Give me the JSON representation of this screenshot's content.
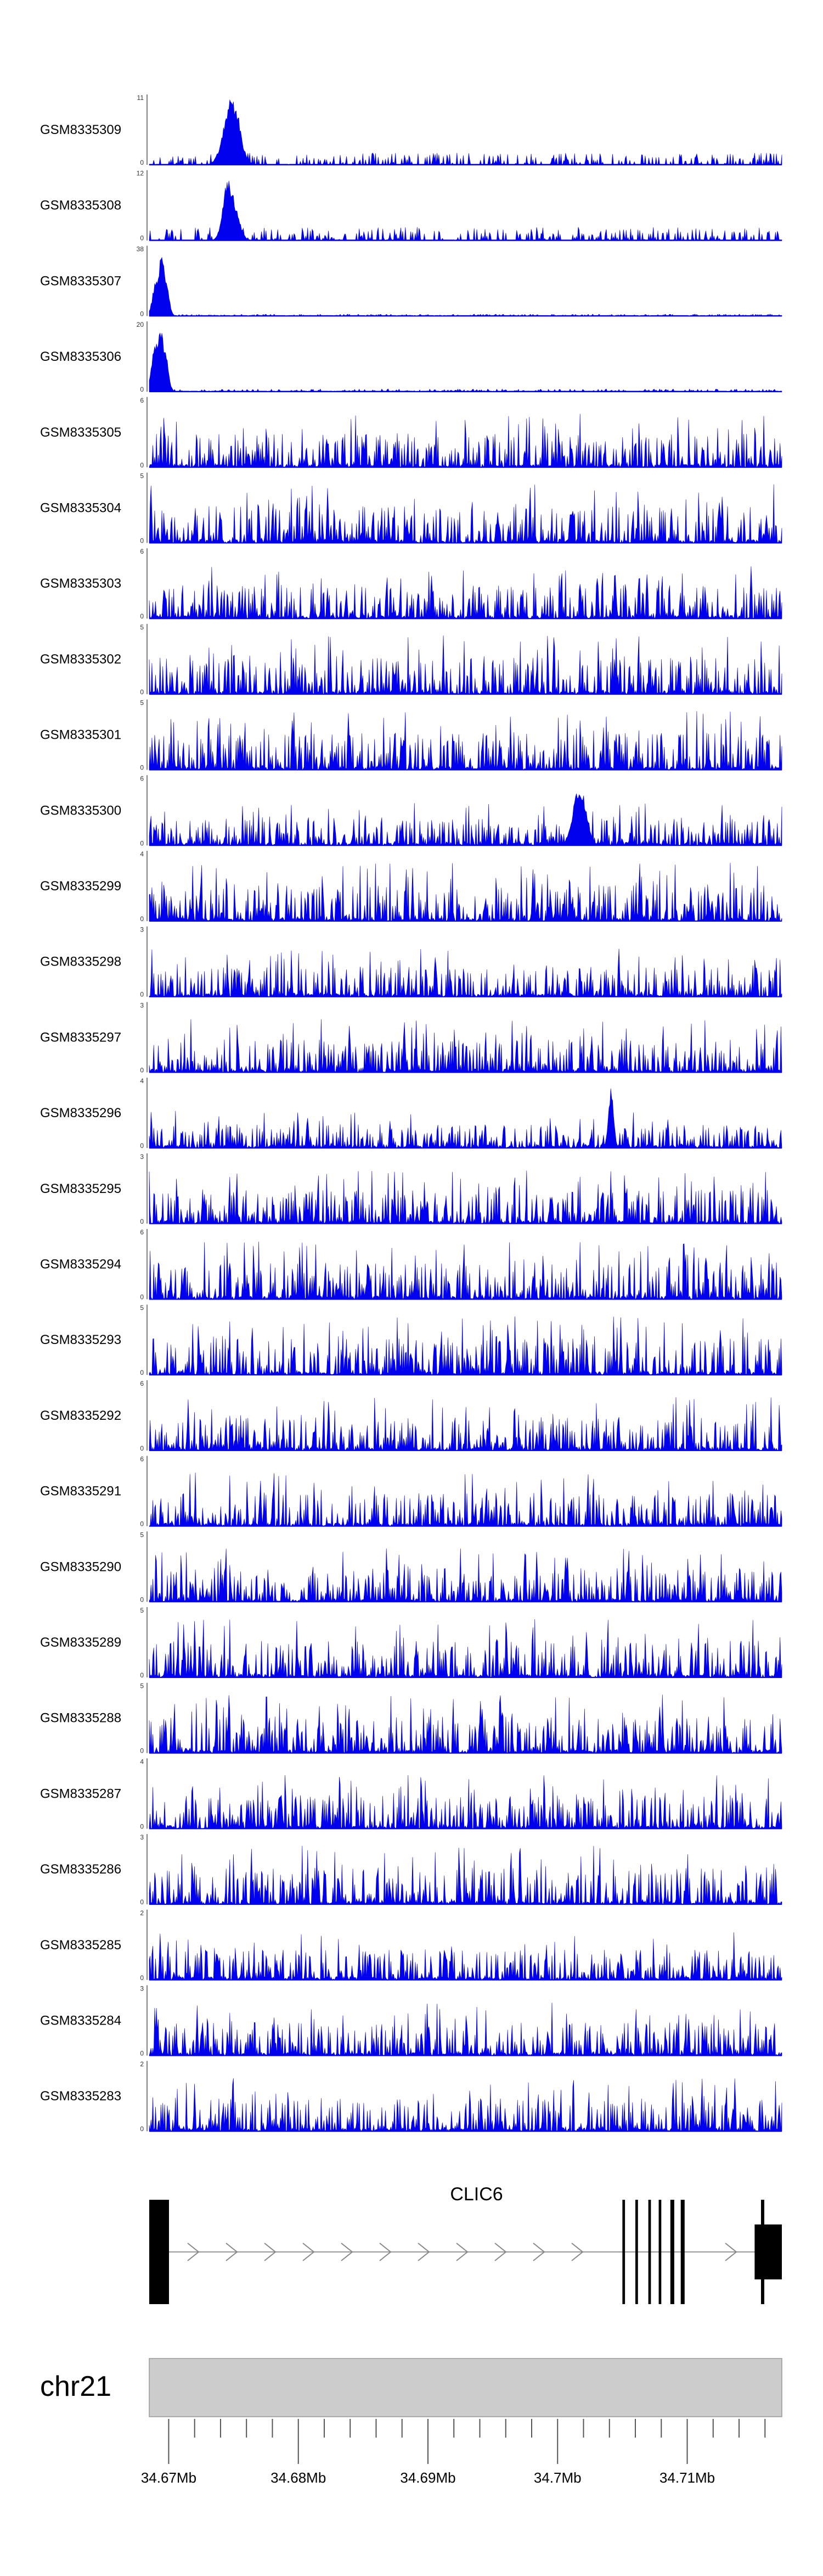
{
  "chart_data": {
    "type": "area",
    "colors": {
      "signal": "#0000ee",
      "axis": "#555555",
      "chrom_bar": "#cccccc",
      "gene": "#000000"
    },
    "region": {
      "chromosome": "chr21",
      "start": 34.6685,
      "end": 34.7173,
      "unit": "Mb"
    },
    "tracks": [
      {
        "name": "GSM8335309",
        "ymax": 11,
        "profile": "peak",
        "peaks": [
          [
            0.13,
            1.0,
            0.012
          ],
          [
            0.125,
            0.7,
            0.006
          ],
          [
            0.14,
            0.75,
            0.006
          ]
        ],
        "bg": 0.18
      },
      {
        "name": "GSM8335308",
        "ymax": 12,
        "profile": "peak",
        "peaks": [
          [
            0.125,
            0.95,
            0.008
          ],
          [
            0.13,
            0.7,
            0.01
          ],
          [
            0.12,
            0.55,
            0.006
          ]
        ],
        "bg": 0.2
      },
      {
        "name": "GSM8335307",
        "ymax": 38,
        "profile": "peak",
        "peaks": [
          [
            0.02,
            1.0,
            0.006
          ],
          [
            0.012,
            0.6,
            0.006
          ],
          [
            0.026,
            0.55,
            0.005
          ]
        ],
        "bg": 0.03
      },
      {
        "name": "GSM8335306",
        "ymax": 20,
        "profile": "peak",
        "peaks": [
          [
            0.018,
            0.95,
            0.006
          ],
          [
            0.01,
            0.75,
            0.006
          ],
          [
            0.025,
            0.6,
            0.005
          ]
        ],
        "bg": 0.04
      },
      {
        "name": "GSM8335305",
        "ymax": 6,
        "profile": "noise",
        "bg": 0.5
      },
      {
        "name": "GSM8335304",
        "ymax": 5,
        "profile": "noise",
        "bg": 0.55
      },
      {
        "name": "GSM8335303",
        "ymax": 6,
        "profile": "noise",
        "bg": 0.5
      },
      {
        "name": "GSM8335302",
        "ymax": 5,
        "profile": "noise",
        "bg": 0.55
      },
      {
        "name": "GSM8335301",
        "ymax": 5,
        "profile": "noise",
        "bg": 0.55
      },
      {
        "name": "GSM8335300",
        "ymax": 6,
        "profile": "noise",
        "bg": 0.4,
        "peaks": [
          [
            0.68,
            0.95,
            0.01
          ]
        ]
      },
      {
        "name": "GSM8335299",
        "ymax": 4,
        "profile": "noise",
        "bg": 0.55
      },
      {
        "name": "GSM8335298",
        "ymax": 3,
        "profile": "noise",
        "bg": 0.45
      },
      {
        "name": "GSM8335297",
        "ymax": 3,
        "profile": "noise",
        "bg": 0.5
      },
      {
        "name": "GSM8335296",
        "ymax": 4,
        "profile": "noise",
        "bg": 0.35,
        "peaks": [
          [
            0.73,
            0.95,
            0.004
          ]
        ]
      },
      {
        "name": "GSM8335295",
        "ymax": 3,
        "profile": "noise",
        "bg": 0.5
      },
      {
        "name": "GSM8335294",
        "ymax": 6,
        "profile": "noise",
        "bg": 0.55
      },
      {
        "name": "GSM8335293",
        "ymax": 5,
        "profile": "noise",
        "bg": 0.55
      },
      {
        "name": "GSM8335292",
        "ymax": 6,
        "profile": "noise",
        "bg": 0.5
      },
      {
        "name": "GSM8335291",
        "ymax": 6,
        "profile": "noise",
        "bg": 0.5
      },
      {
        "name": "GSM8335290",
        "ymax": 5,
        "profile": "noise",
        "bg": 0.5
      },
      {
        "name": "GSM8335289",
        "ymax": 5,
        "profile": "noise",
        "bg": 0.55
      },
      {
        "name": "GSM8335288",
        "ymax": 5,
        "profile": "noise",
        "bg": 0.55
      },
      {
        "name": "GSM8335287",
        "ymax": 4,
        "profile": "noise",
        "bg": 0.5
      },
      {
        "name": "GSM8335286",
        "ymax": 3,
        "profile": "noise",
        "bg": 0.55
      },
      {
        "name": "GSM8335285",
        "ymax": 2,
        "profile": "noise",
        "bg": 0.45
      },
      {
        "name": "GSM8335284",
        "ymax": 3,
        "profile": "noise",
        "bg": 0.5
      },
      {
        "name": "GSM8335283",
        "ymax": 2,
        "profile": "noise",
        "bg": 0.5
      }
    ],
    "gene": {
      "name": "CLIC6",
      "start": 34.6685,
      "end": 34.7173,
      "exons": [
        {
          "start": 34.6685,
          "end": 34.67,
          "size": "large"
        },
        {
          "start": 34.705,
          "end": 34.7052,
          "size": "thin"
        },
        {
          "start": 34.706,
          "end": 34.7062,
          "size": "thin"
        },
        {
          "start": 34.707,
          "end": 34.7072,
          "size": "thin"
        },
        {
          "start": 34.7078,
          "end": 34.708,
          "size": "thin"
        },
        {
          "start": 34.7087,
          "end": 34.709,
          "size": "thin"
        },
        {
          "start": 34.7095,
          "end": 34.7098,
          "size": "thin"
        },
        {
          "start": 34.7152,
          "end": 34.7173,
          "size": "large"
        }
      ]
    },
    "axis": {
      "chromosome_label": "chr21",
      "tick_labels": [
        "34.67Mb",
        "34.68Mb",
        "34.69Mb",
        "34.7Mb",
        "34.71Mb"
      ],
      "major_ticks": [
        34.67,
        34.68,
        34.69,
        34.7,
        34.71
      ],
      "minor_step": 0.002
    }
  }
}
